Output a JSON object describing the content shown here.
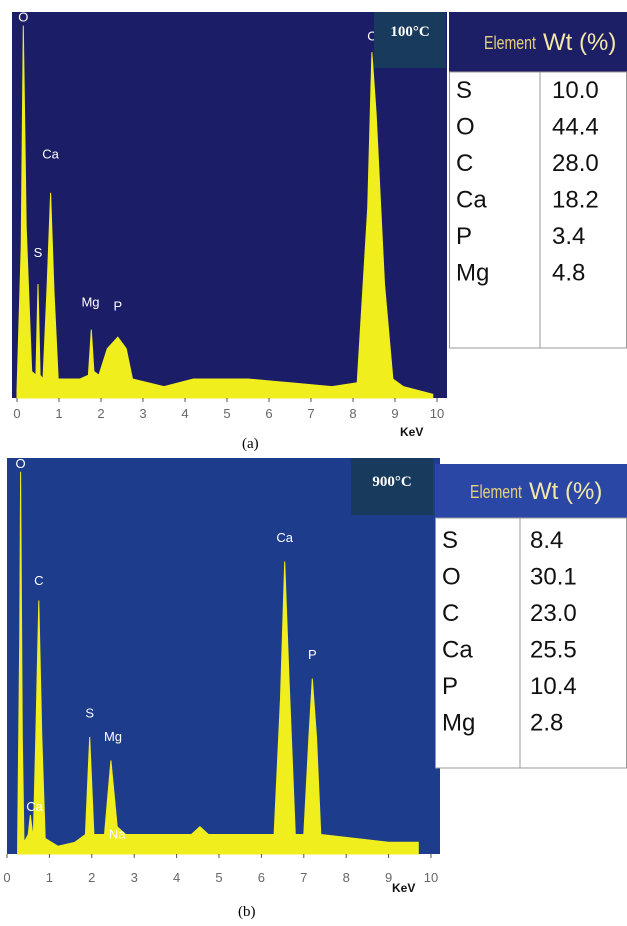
{
  "chart_data": [
    {
      "type": "area",
      "panel_label": "(a)",
      "temperature_label": "100°C",
      "x_unit_label": "KeV",
      "x_ticks": [
        0,
        1,
        2,
        3,
        4,
        5,
        6,
        7,
        8,
        9,
        10
      ],
      "xlim": [
        0,
        10
      ],
      "ylim": [
        0,
        1
      ],
      "spectrum": [
        [
          0.0,
          0.02
        ],
        [
          0.1,
          0.4
        ],
        [
          0.15,
          0.98
        ],
        [
          0.22,
          0.45
        ],
        [
          0.35,
          0.07
        ],
        [
          0.45,
          0.06
        ],
        [
          0.5,
          0.3
        ],
        [
          0.55,
          0.06
        ],
        [
          0.62,
          0.05
        ],
        [
          0.72,
          0.3
        ],
        [
          0.8,
          0.54
        ],
        [
          0.88,
          0.28
        ],
        [
          0.98,
          0.05
        ],
        [
          1.5,
          0.05
        ],
        [
          1.7,
          0.06
        ],
        [
          1.77,
          0.18
        ],
        [
          1.83,
          0.07
        ],
        [
          1.95,
          0.06
        ],
        [
          2.15,
          0.13
        ],
        [
          2.4,
          0.16
        ],
        [
          2.6,
          0.13
        ],
        [
          2.75,
          0.05
        ],
        [
          3.5,
          0.03
        ],
        [
          4.2,
          0.05
        ],
        [
          5.5,
          0.05
        ],
        [
          6.5,
          0.04
        ],
        [
          7.5,
          0.03
        ],
        [
          8.1,
          0.04
        ],
        [
          8.35,
          0.5
        ],
        [
          8.45,
          0.91
        ],
        [
          8.55,
          0.75
        ],
        [
          8.75,
          0.3
        ],
        [
          8.95,
          0.05
        ],
        [
          9.2,
          0.03
        ],
        [
          9.9,
          0.01
        ]
      ],
      "peak_labels": [
        {
          "text": "O",
          "x": 0.15,
          "y": 0.98
        },
        {
          "text": "S",
          "x": 0.5,
          "y": 0.36
        },
        {
          "text": "Ca",
          "x": 0.8,
          "y": 0.62
        },
        {
          "text": "Mg",
          "x": 1.75,
          "y": 0.23
        },
        {
          "text": "P",
          "x": 2.4,
          "y": 0.22
        },
        {
          "text": "C",
          "x": 8.45,
          "y": 0.93
        }
      ],
      "table": {
        "header_element": "Element",
        "header_wt": "Wt (%)",
        "rows": [
          {
            "element": "S",
            "wt": "10.0"
          },
          {
            "element": "O",
            "wt": "44.4"
          },
          {
            "element": "C",
            "wt": "28.0"
          },
          {
            "element": "Ca",
            "wt": "18.2"
          },
          {
            "element": "P",
            "wt": "3.4"
          },
          {
            "element": "Mg",
            "wt": "4.8"
          }
        ]
      },
      "colors": {
        "plot_bg": "#1c1d67",
        "fill": "#f0ee1c",
        "header_bg": "#1d1f66",
        "header_el": "#e7d27a",
        "header_wt": "#f4e8a8",
        "temp_bg": "#183a5c"
      }
    },
    {
      "type": "area",
      "panel_label": "(b)",
      "temperature_label": "900°C",
      "x_unit_label": "KeV",
      "x_ticks": [
        0,
        1,
        2,
        3,
        4,
        5,
        6,
        7,
        8,
        9,
        10
      ],
      "xlim": [
        0,
        10
      ],
      "ylim": [
        0,
        1
      ],
      "spectrum": [
        [
          0.25,
          0.02
        ],
        [
          0.3,
          0.55
        ],
        [
          0.32,
          0.98
        ],
        [
          0.36,
          0.3
        ],
        [
          0.4,
          0.03
        ],
        [
          0.5,
          0.05
        ],
        [
          0.55,
          0.1
        ],
        [
          0.62,
          0.04
        ],
        [
          0.68,
          0.3
        ],
        [
          0.75,
          0.65
        ],
        [
          0.82,
          0.3
        ],
        [
          0.9,
          0.04
        ],
        [
          1.2,
          0.02
        ],
        [
          1.6,
          0.03
        ],
        [
          1.85,
          0.05
        ],
        [
          1.95,
          0.3
        ],
        [
          2.05,
          0.05
        ],
        [
          2.3,
          0.05
        ],
        [
          2.45,
          0.24
        ],
        [
          2.6,
          0.07
        ],
        [
          2.8,
          0.05
        ],
        [
          3.5,
          0.05
        ],
        [
          4.35,
          0.05
        ],
        [
          4.55,
          0.07
        ],
        [
          4.75,
          0.05
        ],
        [
          6.3,
          0.05
        ],
        [
          6.45,
          0.4
        ],
        [
          6.55,
          0.75
        ],
        [
          6.65,
          0.45
        ],
        [
          6.8,
          0.05
        ],
        [
          7.0,
          0.05
        ],
        [
          7.12,
          0.3
        ],
        [
          7.2,
          0.45
        ],
        [
          7.3,
          0.3
        ],
        [
          7.4,
          0.05
        ],
        [
          9.0,
          0.03
        ],
        [
          9.7,
          0.03
        ]
      ],
      "peak_labels": [
        {
          "text": "O",
          "x": 0.32,
          "y": 0.98
        },
        {
          "text": "C",
          "x": 0.75,
          "y": 0.68
        },
        {
          "text": "Ca",
          "x": 0.65,
          "y": 0.1
        },
        {
          "text": "S",
          "x": 1.95,
          "y": 0.34
        },
        {
          "text": "Mg",
          "x": 2.5,
          "y": 0.28
        },
        {
          "text": "Na",
          "x": 2.6,
          "y": 0.03
        },
        {
          "text": "Ca",
          "x": 6.55,
          "y": 0.79
        },
        {
          "text": "P",
          "x": 7.2,
          "y": 0.49
        }
      ],
      "table": {
        "header_element": "Element",
        "header_wt": "Wt (%)",
        "rows": [
          {
            "element": "S",
            "wt": "8.4"
          },
          {
            "element": "O",
            "wt": "30.1"
          },
          {
            "element": "C",
            "wt": "23.0"
          },
          {
            "element": "Ca",
            "wt": "25.5"
          },
          {
            "element": "P",
            "wt": "10.4"
          },
          {
            "element": "Mg",
            "wt": "2.8"
          }
        ]
      },
      "colors": {
        "plot_bg": "#1e3c8c",
        "fill": "#f0ee1c",
        "header_bg": "#2a47a6",
        "header_el": "#e7d27a",
        "header_wt": "#f4e8a8",
        "temp_bg": "#183a5c"
      }
    }
  ]
}
